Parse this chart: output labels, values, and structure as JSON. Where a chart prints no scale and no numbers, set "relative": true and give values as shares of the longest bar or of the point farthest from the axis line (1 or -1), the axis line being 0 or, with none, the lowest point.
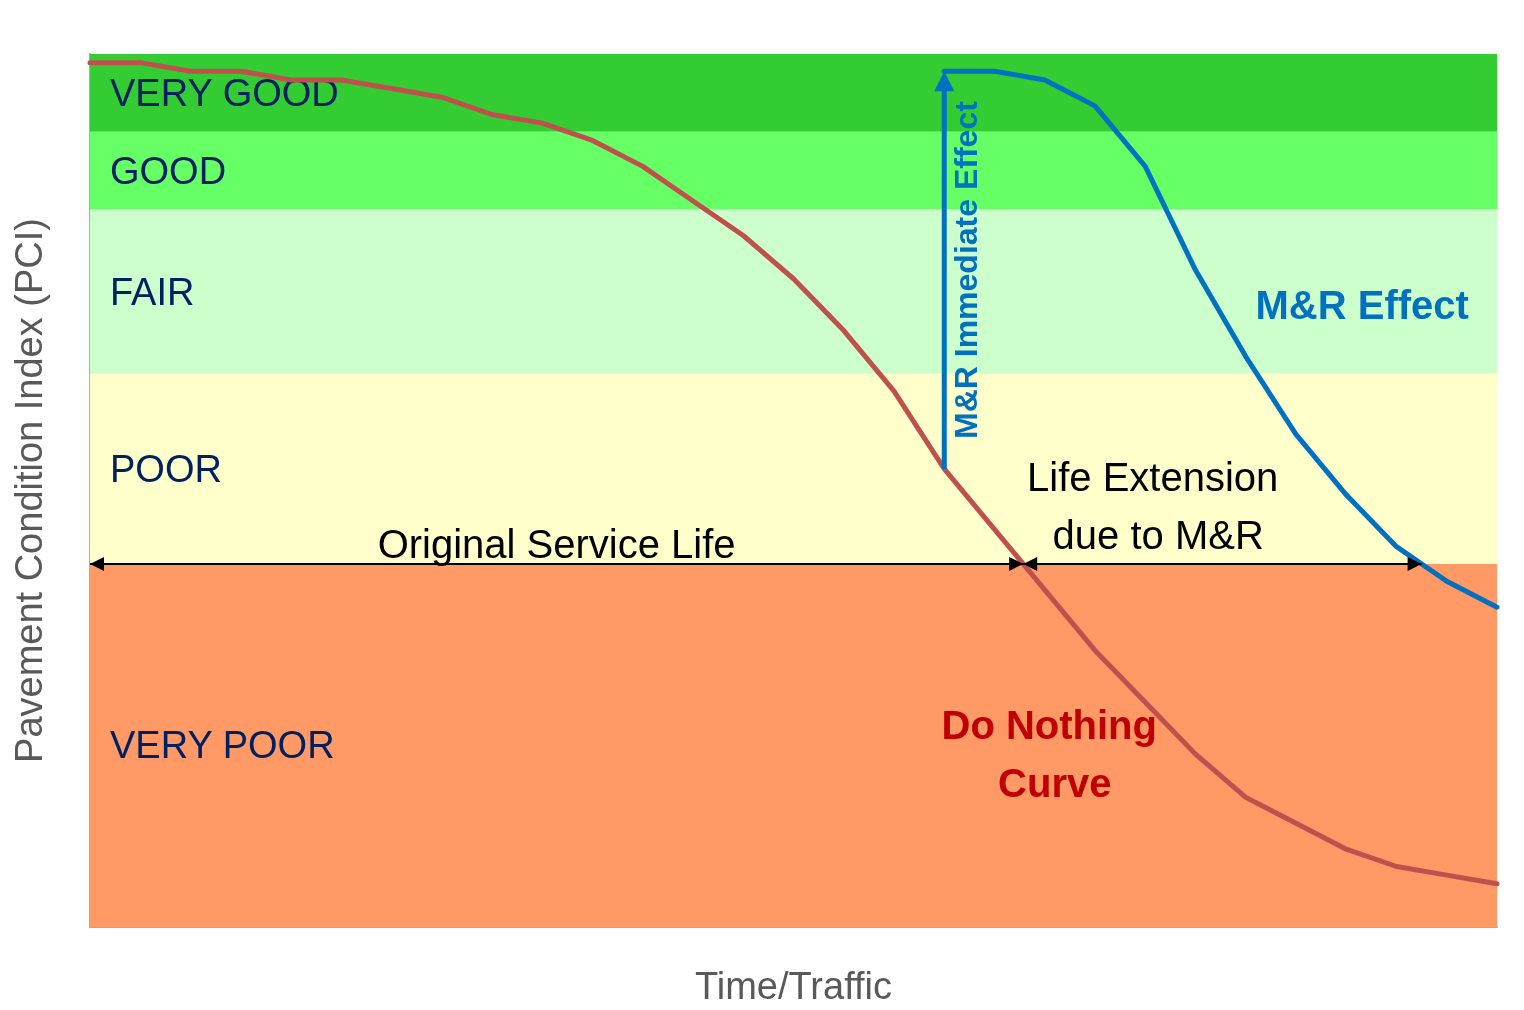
{
  "chart_data": {
    "type": "line",
    "relative": true,
    "xlabel": "Time/Traffic",
    "ylabel": "Pavement Condition Index (PCI)",
    "tick_labels": false,
    "categories": [
      null,
      null,
      null,
      null,
      null,
      null,
      null,
      null,
      null,
      null,
      null,
      null,
      null,
      null,
      null,
      null,
      null,
      null,
      null,
      null,
      null,
      null,
      null,
      null,
      null,
      null,
      null,
      null,
      null
    ],
    "series": [
      {
        "name": "Do Nothing Curve",
        "color": "#c0504d",
        "values": [
          1.0,
          1.0,
          0.99,
          0.99,
          0.98,
          0.98,
          0.97,
          0.96,
          0.94,
          0.93,
          0.91,
          0.88,
          0.84,
          0.8,
          0.75,
          0.69,
          0.62,
          0.53,
          0.46,
          0.39,
          0.32,
          0.26,
          0.2,
          0.15,
          0.12,
          0.09,
          0.07,
          0.06,
          0.05
        ]
      },
      {
        "name": "M&R Effect",
        "color": "#0070c0",
        "values": [
          null,
          null,
          null,
          null,
          null,
          null,
          null,
          null,
          null,
          null,
          null,
          null,
          null,
          null,
          null,
          null,
          null,
          0.99,
          0.99,
          0.98,
          0.95,
          0.88,
          0.76,
          0.66,
          0.57,
          0.5,
          0.44,
          0.4,
          0.37
        ]
      }
    ],
    "bands": [
      {
        "axis": "y",
        "from": 0.92,
        "to": 1.01,
        "label": "VERY GOOD",
        "color": "#33cc33"
      },
      {
        "axis": "y",
        "from": 0.83,
        "to": 0.92,
        "label": "GOOD",
        "color": "#66ff66"
      },
      {
        "axis": "y",
        "from": 0.64,
        "to": 0.83,
        "label": "FAIR",
        "color": "#ccffcc"
      },
      {
        "axis": "y",
        "from": 0.42,
        "to": 0.64,
        "label": "POOR",
        "color": "#ffffcc"
      },
      {
        "axis": "y",
        "from": 0,
        "to": 0.42,
        "label": "VERY POOR",
        "color": "#ff9966"
      }
    ],
    "annotations": [
      "Original Service Life",
      "Life Extension due to M&R",
      "M&R Immediate Effect"
    ]
  }
}
